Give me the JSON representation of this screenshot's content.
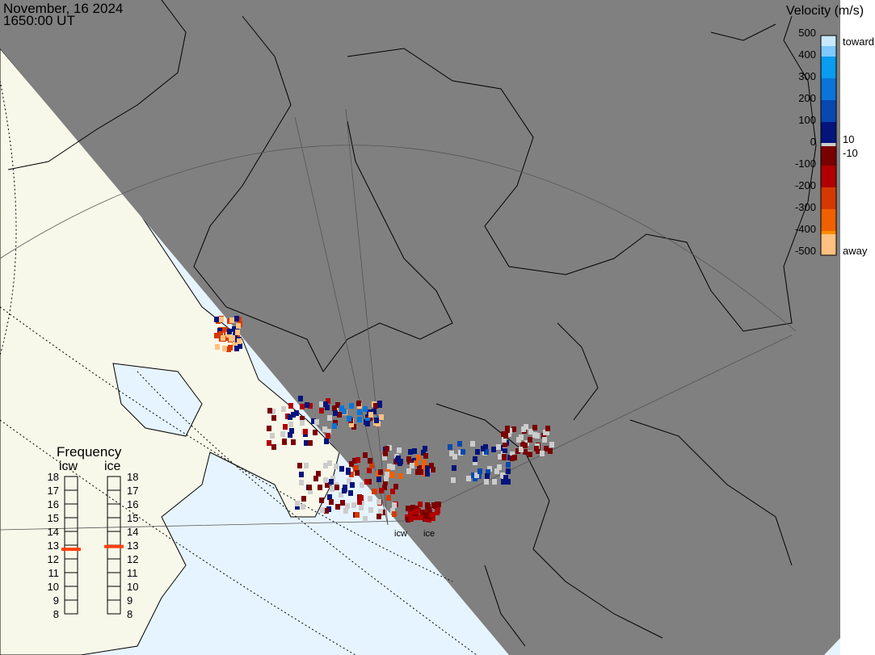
{
  "header": {
    "date": "November, 16 2024",
    "time": "1650:00 UT"
  },
  "legend": {
    "title": "Velocity (m/s)",
    "ticks": [
      "500",
      "400",
      "300",
      "200",
      "100",
      "0",
      "-100",
      "-200",
      "-300",
      "-400",
      "-500"
    ],
    "label_toward": "toward",
    "label_away": "away",
    "label_pos": "10",
    "label_neg": "-10",
    "colors": [
      "#c8eaff",
      "#7ccaff",
      "#0a9cf0",
      "#0a74d8",
      "#0848b0",
      "#04147a",
      "#cccccc",
      "#7a0000",
      "#b00000",
      "#d43a00",
      "#f06000",
      "#ff8c00",
      "#ffc080"
    ]
  },
  "frequency": {
    "title": "Frequency",
    "radars": [
      {
        "name": "icw",
        "value_mhz": 12.7,
        "color": "#ff4010"
      },
      {
        "name": "ice",
        "value_mhz": 12.9,
        "color": "#ff4010"
      }
    ],
    "ticks": [
      "18",
      "17",
      "16",
      "15",
      "14",
      "13",
      "12",
      "11",
      "10",
      "9",
      "8"
    ]
  },
  "map_labels": {
    "radar1": "icw",
    "radar2": "ice"
  },
  "colors": {
    "night": "#808080",
    "ocean_day": "#e6f4ff",
    "land_day": "#f8f8ea"
  }
}
